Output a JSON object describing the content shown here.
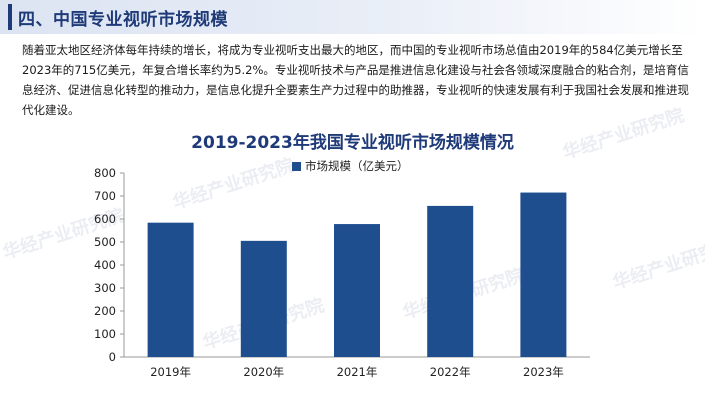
{
  "section": {
    "title": "四、中国专业视听市场规模"
  },
  "intro_text": "随着亚太地区经济体每年持续的增长，将成为专业视听支出最大的地区，而中国的专业视听市场总值由2019年的584亿美元增长至2023年的715亿美元，年复合增长率约为5.2%。专业视听技术与产品是推进信息化建设与社会各领域深度融合的粘合剂，是培育信息经济、促进信息化转型的推动力，是信息化提升全要素生产力过程中的助推器，专业视听的快速发展有利于我国社会发展和推进现代化建设。",
  "watermark": "华经产业研究院",
  "colors": {
    "accent": "#1f3a78",
    "bar": "#1f4e8f"
  },
  "chart_data": {
    "type": "bar",
    "title": "2019-2023年我国专业视听市场规模情况",
    "categories": [
      "2019年",
      "2020年",
      "2021年",
      "2022年",
      "2023年"
    ],
    "series": [
      {
        "name": "市场规模（亿美元）",
        "values": [
          584,
          505,
          578,
          657,
          715
        ]
      }
    ],
    "ylim": [
      0,
      800
    ],
    "yticks": [
      0,
      100,
      200,
      300,
      400,
      500,
      600,
      700,
      800
    ],
    "grid": false,
    "legend": "top-center"
  }
}
